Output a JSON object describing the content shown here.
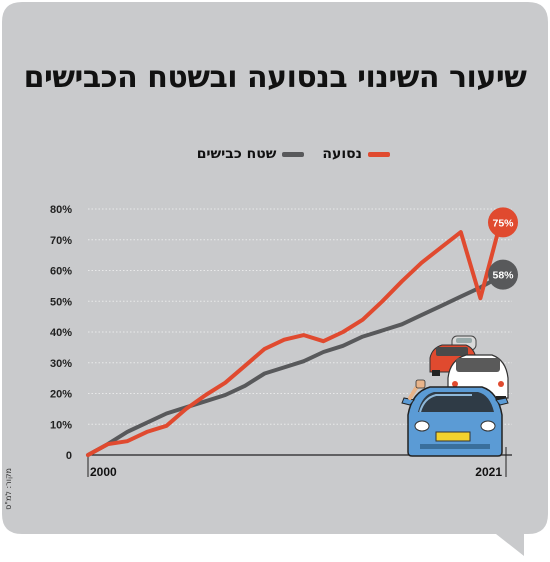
{
  "colors": {
    "background": "#c9cacc",
    "series_traffic": "#e04a2f",
    "series_roads": "#58595b",
    "text": "#111111"
  },
  "title": "שיעור השינוי בנסועה ובשטח הכבישים",
  "legend": {
    "traffic_label": "נסועה",
    "roads_label": "שטח כבישים"
  },
  "source": "מקור: למ\"ס",
  "illustration": "cars-icon",
  "chart_data": {
    "type": "line",
    "x": [
      2000,
      2001,
      2002,
      2003,
      2004,
      2005,
      2006,
      2007,
      2008,
      2009,
      2010,
      2011,
      2012,
      2013,
      2014,
      2015,
      2016,
      2017,
      2018,
      2019,
      2020,
      2021
    ],
    "x_tick_labels": [
      "2000",
      "2021"
    ],
    "ylim": [
      0,
      80
    ],
    "y_ticks": [
      0,
      10,
      20,
      30,
      40,
      50,
      60,
      70,
      80
    ],
    "y_tick_labels": [
      "0",
      "10%",
      "20%",
      "30%",
      "40%",
      "50%",
      "60%",
      "70%",
      "80%"
    ],
    "grid": true,
    "series": [
      {
        "name": "נסועה",
        "color": "#e04a2f",
        "values": [
          0,
          3.5,
          4.5,
          7.5,
          9.5,
          15,
          19.5,
          23.5,
          29,
          34.5,
          37.5,
          39,
          37,
          40,
          44,
          50,
          56.5,
          62.5,
          67.5,
          72.5,
          51,
          75
        ],
        "end_label": "75%"
      },
      {
        "name": "שטח כבישים",
        "color": "#58595b",
        "values": [
          0,
          3.5,
          7.5,
          10.5,
          13.5,
          15.5,
          17.5,
          19.5,
          22.5,
          26.5,
          28.5,
          30.5,
          33.5,
          35.5,
          38.5,
          40.5,
          42.5,
          45.5,
          48.5,
          51.5,
          54.5,
          58
        ],
        "end_label": "58%"
      }
    ]
  }
}
